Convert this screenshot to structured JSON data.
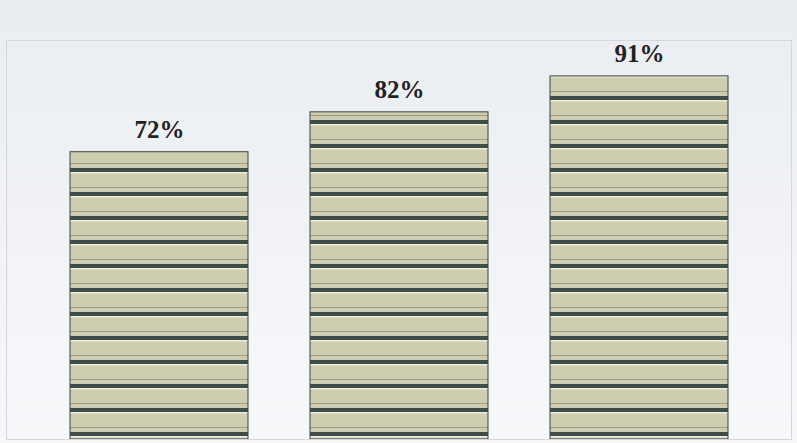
{
  "chart_data": {
    "type": "bar",
    "categories": [
      null,
      null,
      null
    ],
    "values": [
      72,
      82,
      91
    ],
    "value_labels": [
      "72%",
      "82%",
      "91%"
    ],
    "data_labels": true,
    "tick_labels": false,
    "color": "#cfcdb0",
    "ylim": [
      0,
      100
    ],
    "grid": false
  }
}
